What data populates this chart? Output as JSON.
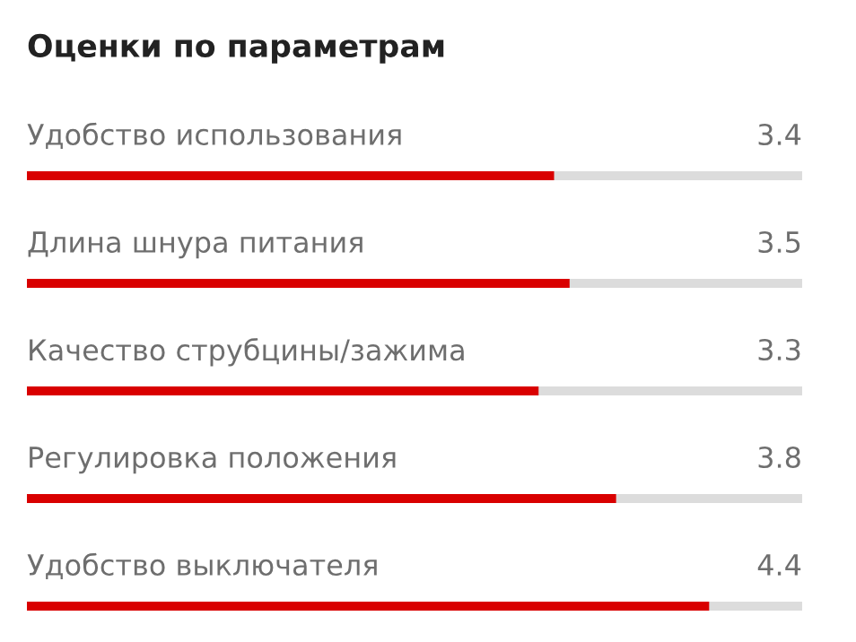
{
  "chart_data": {
    "type": "bar",
    "orientation": "horizontal",
    "title": "Оценки по параметрам",
    "categories": [
      "Удобство использования",
      "Длина шнура питания",
      "Качество струбцины/зажима",
      "Регулировка положения",
      "Удобство выключателя"
    ],
    "values": [
      3.4,
      3.5,
      3.3,
      3.8,
      4.4
    ],
    "color": "#d90000",
    "xlim": [
      0,
      5
    ],
    "data_labels": true
  }
}
